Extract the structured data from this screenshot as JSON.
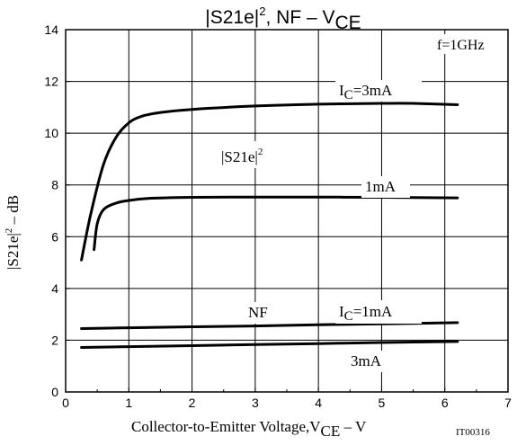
{
  "chart_data": {
    "type": "line",
    "title": {
      "main": "|S21e|",
      "sup": "2",
      "rest": ",  NF  –  V",
      "sub": "CE"
    },
    "xlabel": {
      "main": "Collector-to-Emitter Voltage,V",
      "sub": "CE",
      "rest": "  –  V"
    },
    "ylabel": {
      "main": "|S21e|",
      "sup": "2",
      "rest": "  –  dB"
    },
    "figure_code": "IT00316",
    "xlim": [
      0,
      7
    ],
    "ylim": [
      0,
      14
    ],
    "x_ticks": [
      0,
      1,
      2,
      3,
      4,
      5,
      6,
      7
    ],
    "y_ticks": [
      0,
      2,
      4,
      6,
      8,
      10,
      12,
      14
    ],
    "grid": true,
    "annotations": {
      "freq": "f=1GHz",
      "s21_group": {
        "main": "|S21e|",
        "sup": "2"
      },
      "nf_group": "NF",
      "ic_3ma": {
        "pre": "I",
        "sub": "C",
        "post": "=3mA"
      },
      "ic_1ma_s21": "1mA",
      "ic_1ma_nf": {
        "pre": "I",
        "sub": "C",
        "post": "=1mA"
      },
      "ic_3ma_nf": "3mA"
    },
    "series": [
      {
        "x": [
          0.25,
          0.4,
          0.6,
          0.8,
          1.0,
          1.2,
          1.5,
          2.0,
          3.0,
          4.0,
          5.0,
          5.5,
          6.2
        ],
        "values": [
          5.1,
          6.9,
          8.8,
          9.85,
          10.4,
          10.65,
          10.8,
          10.92,
          11.05,
          11.12,
          11.15,
          11.15,
          11.1
        ]
      },
      {
        "x": [
          0.45,
          0.5,
          0.6,
          0.8,
          1.0,
          1.3,
          2.0,
          3.0,
          4.0,
          5.0,
          6.2
        ],
        "values": [
          5.5,
          6.5,
          7.05,
          7.3,
          7.4,
          7.48,
          7.52,
          7.53,
          7.53,
          7.52,
          7.5
        ]
      },
      {
        "x": [
          0.25,
          1.0,
          2.0,
          3.0,
          4.0,
          5.0,
          6.2
        ],
        "values": [
          2.45,
          2.48,
          2.52,
          2.55,
          2.6,
          2.63,
          2.68
        ]
      },
      {
        "x": [
          0.25,
          1.0,
          2.0,
          3.0,
          4.0,
          5.0,
          6.2
        ],
        "values": [
          1.72,
          1.75,
          1.79,
          1.83,
          1.87,
          1.91,
          1.95
        ]
      }
    ]
  }
}
